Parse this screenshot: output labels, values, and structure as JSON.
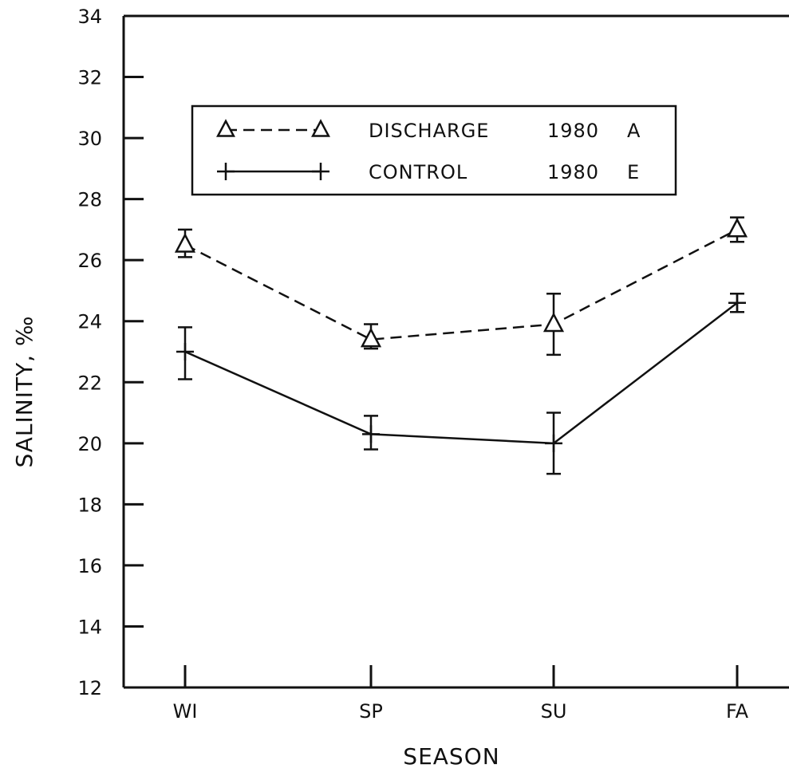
{
  "chart_data": {
    "type": "line",
    "xlabel": "SEASON",
    "ylabel": "SALINITY, ‰",
    "categories": [
      "WI",
      "SP",
      "SU",
      "FA"
    ],
    "ylim": [
      12,
      34
    ],
    "yticks": [
      12,
      14,
      16,
      18,
      20,
      22,
      24,
      26,
      28,
      30,
      32,
      34
    ],
    "grid": false,
    "legend_position": "top-left",
    "series": [
      {
        "name": "DISCHARGE",
        "year": "1980",
        "code": "A",
        "marker": "triangle",
        "line_style": "dashed",
        "values": [
          26.5,
          23.4,
          23.9,
          27.0
        ],
        "error_low": [
          26.1,
          23.1,
          22.9,
          26.6
        ],
        "error_high": [
          27.0,
          23.9,
          24.9,
          27.4
        ]
      },
      {
        "name": "CONTROL",
        "year": "1980",
        "code": "E",
        "marker": "plus",
        "line_style": "solid",
        "values": [
          23.0,
          20.3,
          20.0,
          24.6
        ],
        "error_low": [
          22.1,
          19.8,
          19.0,
          24.3
        ],
        "error_high": [
          23.8,
          20.9,
          21.0,
          24.9
        ]
      }
    ]
  }
}
